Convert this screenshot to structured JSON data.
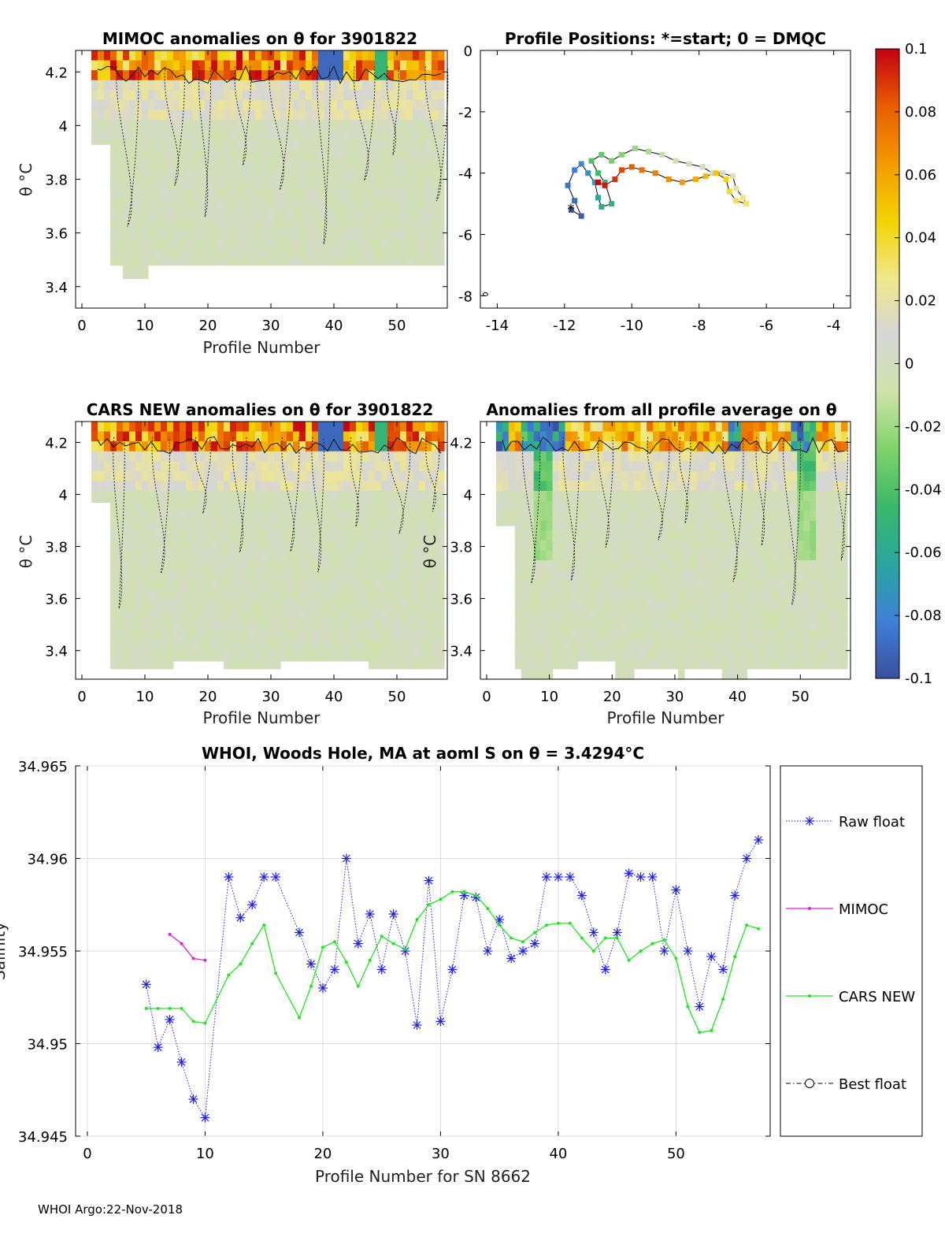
{
  "figure": {
    "float_id": "3901822",
    "footer": "WHOI Argo:22-Nov-2018"
  },
  "colorbar": {
    "ticks": [
      "0.1",
      "0.08",
      "0.06",
      "0.04",
      "0.02",
      "0",
      "-0.02",
      "-0.04",
      "-0.06",
      "-0.08",
      "-0.1"
    ],
    "range": [
      -0.1,
      0.1
    ],
    "stops": [
      "#3b4f9c",
      "#3f7fd8",
      "#2aa6a0",
      "#39b86a",
      "#7ed36b",
      "#cfe3a8",
      "#d6d6d6",
      "#f0e88a",
      "#f2d400",
      "#f39a00",
      "#e85d00",
      "#c40012"
    ]
  },
  "chart_data": [
    {
      "id": "mimoc",
      "type": "heatmap",
      "title": "MIMOC anomalies on θ  for 3901822",
      "xlabel": "Profile Number",
      "ylabel": "θ °C",
      "xlim": [
        -1,
        58
      ],
      "ylim": [
        3.32,
        4.28
      ],
      "xticks": [
        "0",
        "10",
        "20",
        "30",
        "40",
        "50"
      ],
      "yticks": [
        "3.4",
        "3.6",
        "3.8",
        "4",
        "4.2"
      ],
      "profiles": [
        2,
        57
      ],
      "theta_min_by_segment": [
        [
          2,
          4,
          3.93
        ],
        [
          5,
          6,
          3.48
        ],
        [
          7,
          10,
          3.43
        ],
        [
          11,
          57,
          3.48
        ]
      ],
      "surface_anomaly_pattern": "warm anomalies (0.04 to 0.1) at θ > 4.15 across most profiles; near-zero grey below"
    },
    {
      "id": "positions",
      "type": "scatter",
      "title": "Profile Positions: *=start; 0 = DMQC",
      "xlim": [
        -14.5,
        -3.5
      ],
      "ylim": [
        -8.4,
        0
      ],
      "xticks": [
        "-14",
        "-12",
        "-10",
        "-8",
        "-6",
        "-4"
      ],
      "yticks": [
        "0",
        "-2",
        "-4",
        "-6",
        "-8"
      ],
      "track": [
        [
          -11.8,
          -5.2
        ],
        [
          -11.5,
          -5.4
        ],
        [
          -11.7,
          -4.9
        ],
        [
          -11.9,
          -4.4
        ],
        [
          -11.7,
          -3.9
        ],
        [
          -11.5,
          -3.7
        ],
        [
          -11.3,
          -4.0
        ],
        [
          -11.1,
          -4.3
        ],
        [
          -11.0,
          -4.8
        ],
        [
          -10.9,
          -5.1
        ],
        [
          -10.6,
          -5.0
        ],
        [
          -10.8,
          -4.3
        ],
        [
          -11.0,
          -4.0
        ],
        [
          -11.2,
          -3.6
        ],
        [
          -10.9,
          -3.4
        ],
        [
          -10.6,
          -3.6
        ],
        [
          -10.3,
          -3.4
        ],
        [
          -9.9,
          -3.2
        ],
        [
          -9.5,
          -3.3
        ],
        [
          -9.1,
          -3.4
        ],
        [
          -8.7,
          -3.6
        ],
        [
          -8.3,
          -3.7
        ],
        [
          -7.9,
          -3.8
        ],
        [
          -7.6,
          -4.0
        ],
        [
          -7.3,
          -4.0
        ],
        [
          -7.0,
          -4.1
        ],
        [
          -6.9,
          -4.5
        ],
        [
          -6.7,
          -4.8
        ],
        [
          -6.6,
          -5.0
        ],
        [
          -6.9,
          -4.9
        ],
        [
          -7.1,
          -4.6
        ],
        [
          -7.2,
          -4.2
        ],
        [
          -7.5,
          -4.0
        ],
        [
          -7.8,
          -4.1
        ],
        [
          -8.1,
          -4.2
        ],
        [
          -8.5,
          -4.3
        ],
        [
          -8.9,
          -4.2
        ],
        [
          -9.3,
          -4.0
        ],
        [
          -9.7,
          -3.9
        ],
        [
          -10.0,
          -3.8
        ],
        [
          -10.3,
          -3.9
        ],
        [
          -10.5,
          -4.2
        ],
        [
          -10.8,
          -4.4
        ],
        [
          -11.0,
          -4.3
        ]
      ],
      "dmqc_marker": [
        -14.35,
        -7.95
      ]
    },
    {
      "id": "cars",
      "type": "heatmap",
      "title": "CARS NEW anomalies on θ for 3901822",
      "xlabel": "Profile Number",
      "ylabel": "θ °C",
      "xlim": [
        -1,
        58
      ],
      "ylim": [
        3.29,
        4.28
      ],
      "xticks": [
        "0",
        "10",
        "20",
        "30",
        "40",
        "50"
      ],
      "yticks": [
        "3.4",
        "3.6",
        "3.8",
        "4",
        "4.2"
      ],
      "profiles": [
        2,
        57
      ],
      "theta_min_by_segment": [
        [
          2,
          4,
          3.97
        ],
        [
          5,
          14,
          3.33
        ],
        [
          15,
          22,
          3.36
        ],
        [
          23,
          31,
          3.33
        ],
        [
          32,
          45,
          3.36
        ],
        [
          46,
          57,
          3.33
        ]
      ],
      "surface_anomaly_pattern": "warm anomalies (0.02 to 0.1) at θ > 4.1; near-zero grey below"
    },
    {
      "id": "allavg",
      "type": "heatmap",
      "title": "Anomalies from all profile average on θ",
      "xlabel": "Profile Number",
      "ylabel": "θ °C",
      "xlim": [
        -1,
        58
      ],
      "ylim": [
        3.29,
        4.28
      ],
      "xticks": [
        "0",
        "10",
        "20",
        "30",
        "40",
        "50"
      ],
      "yticks": [
        "3.4",
        "3.6",
        "3.8",
        "4",
        "4.2"
      ],
      "profiles": [
        2,
        57
      ],
      "theta_min_by_segment": [
        [
          2,
          4,
          3.88
        ],
        [
          5,
          5,
          3.33
        ],
        [
          6,
          10,
          3.29
        ],
        [
          11,
          14,
          3.33
        ],
        [
          15,
          20,
          3.36
        ],
        [
          21,
          23,
          3.29
        ],
        [
          24,
          30,
          3.33
        ],
        [
          31,
          31,
          3.29
        ],
        [
          32,
          37,
          3.33
        ],
        [
          38,
          41,
          3.29
        ],
        [
          42,
          57,
          3.33
        ]
      ],
      "surface_anomaly_pattern": "mixed: negative (green/blue) near profiles 6-12 and 49-52, positive (yellow/orange) near 13-20 and 30-45"
    },
    {
      "id": "salinity",
      "type": "line",
      "title": "WHOI, Woods Hole, MA at aoml S on θ = 3.4294°C",
      "xlabel": "Profile Number for SN 8662",
      "ylabel": "Salinity",
      "xlim": [
        -1,
        58
      ],
      "ylim": [
        34.945,
        34.965
      ],
      "xticks": [
        "0",
        "10",
        "20",
        "30",
        "40",
        "50"
      ],
      "yticks": [
        "34.945",
        "34.95",
        "34.955",
        "34.96",
        "34.965"
      ],
      "series": [
        {
          "name": "Raw float",
          "color": "#1f1fe6",
          "x": [
            5,
            6,
            7,
            8,
            9,
            10,
            12,
            13,
            14,
            15,
            16,
            18,
            19,
            20,
            21,
            22,
            23,
            24,
            25,
            26,
            27,
            28,
            29,
            30,
            31,
            32,
            33,
            34,
            35,
            36,
            37,
            38,
            39,
            40,
            41,
            42,
            43,
            44,
            45,
            46,
            47,
            48,
            49,
            50,
            51,
            52,
            53,
            54,
            55,
            56,
            57
          ],
          "y": [
            34.9532,
            34.9498,
            34.9513,
            34.949,
            34.947,
            34.946,
            34.959,
            34.9568,
            34.9575,
            34.959,
            34.959,
            34.956,
            34.9543,
            34.953,
            34.954,
            34.96,
            34.9554,
            34.957,
            34.954,
            34.957,
            34.955,
            34.951,
            34.9588,
            34.9512,
            34.954,
            34.958,
            34.9579,
            34.955,
            34.9567,
            34.9546,
            34.955,
            34.9554,
            34.959,
            34.959,
            34.959,
            34.958,
            34.956,
            34.954,
            34.956,
            34.9592,
            34.959,
            34.959,
            34.955,
            34.9583,
            34.955,
            34.952,
            34.9547,
            34.954,
            34.958,
            34.96,
            34.961
          ]
        },
        {
          "name": "MIMOC",
          "color": "#e11fd6",
          "x": [
            7,
            8,
            9,
            10
          ],
          "y": [
            34.9559,
            34.9554,
            34.9546,
            34.9545
          ]
        },
        {
          "name": "CARS NEW",
          "color": "#1fe81f",
          "x": [
            5,
            6,
            7,
            8,
            9,
            10,
            12,
            13,
            14,
            15,
            16,
            18,
            19,
            20,
            21,
            22,
            23,
            24,
            25,
            26,
            27,
            28,
            29,
            30,
            31,
            32,
            33,
            34,
            35,
            36,
            37,
            38,
            39,
            40,
            41,
            42,
            43,
            44,
            45,
            46,
            47,
            48,
            49,
            50,
            51,
            52,
            53,
            54,
            55,
            56,
            57
          ],
          "y": [
            34.9519,
            34.9519,
            34.9519,
            34.9519,
            34.9512,
            34.9511,
            34.9537,
            34.9543,
            34.9554,
            34.9564,
            34.9538,
            34.9514,
            34.9531,
            34.9552,
            34.9555,
            34.9544,
            34.9531,
            34.9545,
            34.9558,
            34.9554,
            34.9551,
            34.9567,
            34.9575,
            34.9578,
            34.9582,
            34.9582,
            34.958,
            34.9573,
            34.9564,
            34.9557,
            34.9555,
            34.956,
            34.9564,
            34.9565,
            34.9565,
            34.9557,
            34.955,
            34.9557,
            34.9557,
            34.9545,
            34.955,
            34.9554,
            34.9556,
            34.9546,
            34.952,
            34.9506,
            34.9507,
            34.9524,
            34.9547,
            34.9564,
            34.9562
          ]
        },
        {
          "name": "Best float",
          "color": "#000000",
          "x": [],
          "y": []
        }
      ]
    }
  ]
}
